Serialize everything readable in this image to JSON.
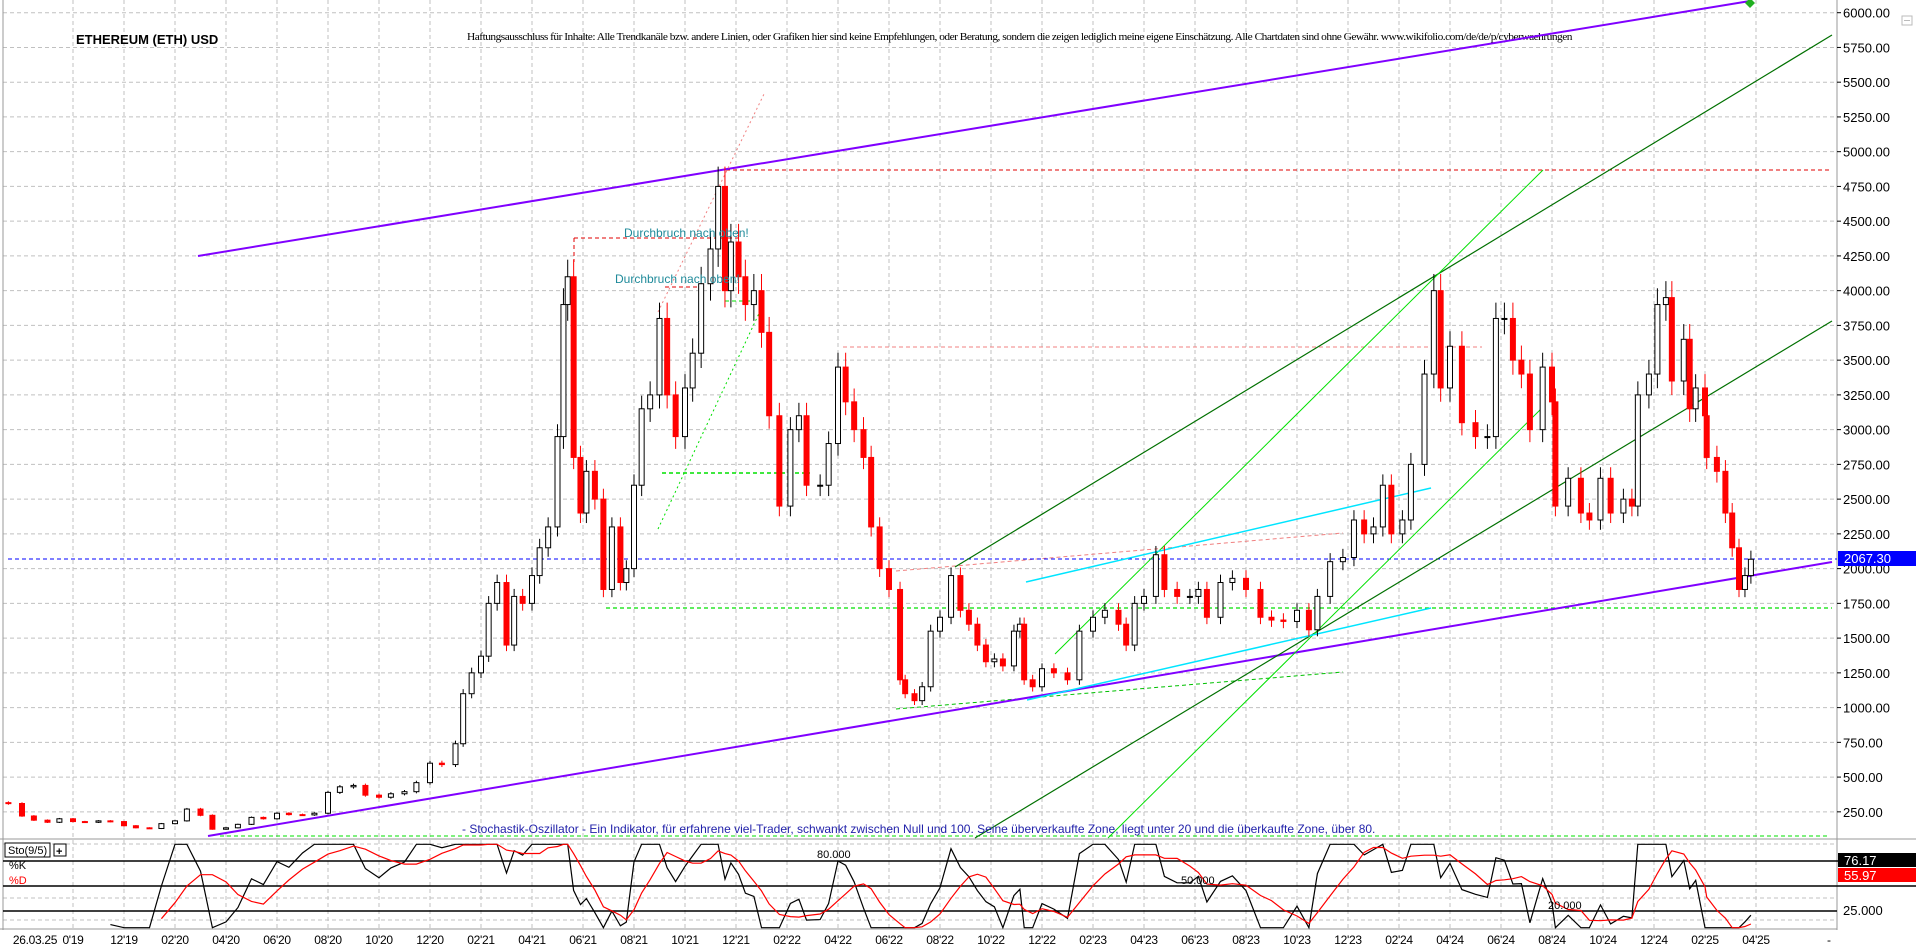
{
  "header": {
    "title": "ETHEREUM (ETH) USD",
    "disclaimer": "Haftungsausschluss für Inhalte: Alle Trendkanäle bzw. andere Linien, oder Grafiken hier sind keine Empfehlungen, oder Beratung, sondern die zeigen lediglich meine eigene Einschätzung. Alle Chartdaten sind ohne Gewähr.  www.wikifolio.com/de/de/p/cyberwaehrungen"
  },
  "annotations": {
    "breakout_1": "Durchbruch nach oben!",
    "breakout_2": "Durchbruch nach oben!",
    "stochastic_note": "- Stochastik-Oszillator - Ein Indikator, für erfahrene viel-Trader, schwankt zwischen Null und 100. Seine überverkaufte Zone, liegt unter 20 und die überkaufte Zone, über 80."
  },
  "colors": {
    "up_candle": "#000000",
    "down_candle": "#ff0000",
    "channel": "#8000ff",
    "trend_dark": "#007000",
    "trend_light": "#00e000",
    "cyan": "#00e5ff",
    "last_price": "#0000ff",
    "stoch_k": "#000000",
    "stoch_d": "#ff0000"
  },
  "chart_data": {
    "type": "candlestick",
    "title": "ETHEREUM (ETH) USD",
    "ylim": [
      0,
      6000
    ],
    "y_ticks": [
      "6000.00",
      "5750.00",
      "5500.00",
      "5250.00",
      "5000.00",
      "4750.00",
      "4500.00",
      "4250.00",
      "4000.00",
      "3750.00",
      "3500.00",
      "3250.00",
      "3000.00",
      "2750.00",
      "2500.00",
      "2250.00",
      "2000.00",
      "1750.00",
      "1500.00",
      "1250.00",
      "1000.00",
      "750.00",
      "500.00",
      "250.00"
    ],
    "x_ticks": [
      {
        "label": "26.03.25",
        "date": null
      },
      {
        "label": "0'19",
        "date": "2019-10-01"
      },
      {
        "label": "12'19",
        "date": "2019-12-01"
      },
      {
        "label": "02'20",
        "date": "2020-02-01"
      },
      {
        "label": "04'20",
        "date": "2020-04-01"
      },
      {
        "label": "06'20",
        "date": "2020-06-01"
      },
      {
        "label": "08'20",
        "date": "2020-08-01"
      },
      {
        "label": "10'20",
        "date": "2020-10-01"
      },
      {
        "label": "12'20",
        "date": "2020-12-01"
      },
      {
        "label": "02'21",
        "date": "2021-02-01"
      },
      {
        "label": "04'21",
        "date": "2021-04-01"
      },
      {
        "label": "06'21",
        "date": "2021-06-01"
      },
      {
        "label": "08'21",
        "date": "2021-08-01"
      },
      {
        "label": "10'21",
        "date": "2021-10-01"
      },
      {
        "label": "12'21",
        "date": "2021-12-01"
      },
      {
        "label": "02'22",
        "date": "2022-02-01"
      },
      {
        "label": "04'22",
        "date": "2022-04-01"
      },
      {
        "label": "06'22",
        "date": "2022-06-01"
      },
      {
        "label": "08'22",
        "date": "2022-08-01"
      },
      {
        "label": "10'22",
        "date": "2022-10-01"
      },
      {
        "label": "12'22",
        "date": "2022-12-01"
      },
      {
        "label": "02'23",
        "date": "2023-02-01"
      },
      {
        "label": "04'23",
        "date": "2023-04-01"
      },
      {
        "label": "06'23",
        "date": "2023-06-01"
      },
      {
        "label": "08'23",
        "date": "2023-08-01"
      },
      {
        "label": "10'23",
        "date": "2023-10-01"
      },
      {
        "label": "12'23",
        "date": "2023-12-01"
      },
      {
        "label": "02'24",
        "date": "2024-02-01"
      },
      {
        "label": "04'24",
        "date": "2024-04-01"
      },
      {
        "label": "06'24",
        "date": "2024-06-01"
      },
      {
        "label": "08'24",
        "date": "2024-08-01"
      },
      {
        "label": "10'24",
        "date": "2024-10-01"
      },
      {
        "label": "12'24",
        "date": "2024-12-01"
      },
      {
        "label": "02'25",
        "date": "2025-02-01"
      },
      {
        "label": "04'25",
        "date": "2025-04-01"
      }
    ],
    "x_axis_end_marker": "-",
    "last_price": "2067.30",
    "grid": true,
    "series": [
      [
        "2019-07-15",
        310
      ],
      [
        "2019-08-01",
        220
      ],
      [
        "2019-08-15",
        190
      ],
      [
        "2019-09-01",
        175
      ],
      [
        "2019-09-15",
        200
      ],
      [
        "2019-10-01",
        180
      ],
      [
        "2019-10-15",
        175
      ],
      [
        "2019-11-01",
        185
      ],
      [
        "2019-11-15",
        180
      ],
      [
        "2019-12-01",
        150
      ],
      [
        "2019-12-15",
        135
      ],
      [
        "2020-01-01",
        130
      ],
      [
        "2020-01-15",
        165
      ],
      [
        "2020-02-01",
        185
      ],
      [
        "2020-02-15",
        270
      ],
      [
        "2020-03-01",
        225
      ],
      [
        "2020-03-15",
        125
      ],
      [
        "2020-04-01",
        135
      ],
      [
        "2020-04-15",
        160
      ],
      [
        "2020-05-01",
        210
      ],
      [
        "2020-05-15",
        200
      ],
      [
        "2020-06-01",
        240
      ],
      [
        "2020-06-15",
        230
      ],
      [
        "2020-07-01",
        228
      ],
      [
        "2020-07-15",
        240
      ],
      [
        "2020-08-01",
        390
      ],
      [
        "2020-08-15",
        430
      ],
      [
        "2020-09-01",
        440
      ],
      [
        "2020-09-15",
        370
      ],
      [
        "2020-10-01",
        355
      ],
      [
        "2020-10-15",
        380
      ],
      [
        "2020-11-01",
        395
      ],
      [
        "2020-11-15",
        460
      ],
      [
        "2020-12-01",
        600
      ],
      [
        "2020-12-15",
        590
      ],
      [
        "2021-01-01",
        740
      ],
      [
        "2021-01-10",
        1100
      ],
      [
        "2021-01-20",
        1250
      ],
      [
        "2021-02-01",
        1370
      ],
      [
        "2021-02-10",
        1750
      ],
      [
        "2021-02-20",
        1900
      ],
      [
        "2021-03-01",
        1450
      ],
      [
        "2021-03-10",
        1800
      ],
      [
        "2021-03-20",
        1750
      ],
      [
        "2021-04-01",
        1950
      ],
      [
        "2021-04-10",
        2150
      ],
      [
        "2021-04-20",
        2300
      ],
      [
        "2021-05-01",
        2950
      ],
      [
        "2021-05-08",
        3900
      ],
      [
        "2021-05-13",
        4100
      ],
      [
        "2021-05-20",
        2800
      ],
      [
        "2021-05-28",
        2400
      ],
      [
        "2021-06-05",
        2700
      ],
      [
        "2021-06-15",
        2500
      ],
      [
        "2021-06-25",
        1850
      ],
      [
        "2021-07-05",
        2300
      ],
      [
        "2021-07-15",
        1900
      ],
      [
        "2021-07-22",
        2000
      ],
      [
        "2021-08-01",
        2600
      ],
      [
        "2021-08-10",
        3150
      ],
      [
        "2021-08-20",
        3250
      ],
      [
        "2021-09-01",
        3800
      ],
      [
        "2021-09-10",
        3250
      ],
      [
        "2021-09-20",
        2950
      ],
      [
        "2021-10-01",
        3300
      ],
      [
        "2021-10-10",
        3550
      ],
      [
        "2021-10-20",
        4050
      ],
      [
        "2021-11-01",
        4300
      ],
      [
        "2021-11-10",
        4750
      ],
      [
        "2021-11-18",
        4000
      ],
      [
        "2021-11-25",
        4350
      ],
      [
        "2021-12-04",
        4100
      ],
      [
        "2021-12-12",
        3900
      ],
      [
        "2021-12-22",
        4000
      ],
      [
        "2022-01-01",
        3700
      ],
      [
        "2022-01-10",
        3100
      ],
      [
        "2022-01-22",
        2450
      ],
      [
        "2022-02-05",
        3000
      ],
      [
        "2022-02-15",
        3100
      ],
      [
        "2022-02-24",
        2600
      ],
      [
        "2022-03-10",
        2600
      ],
      [
        "2022-03-20",
        2900
      ],
      [
        "2022-04-01",
        3450
      ],
      [
        "2022-04-10",
        3200
      ],
      [
        "2022-04-20",
        3000
      ],
      [
        "2022-05-01",
        2800
      ],
      [
        "2022-05-10",
        2300
      ],
      [
        "2022-05-20",
        2000
      ],
      [
        "2022-06-01",
        1850
      ],
      [
        "2022-06-14",
        1200
      ],
      [
        "2022-06-20",
        1100
      ],
      [
        "2022-07-01",
        1050
      ],
      [
        "2022-07-10",
        1150
      ],
      [
        "2022-07-20",
        1550
      ],
      [
        "2022-08-01",
        1650
      ],
      [
        "2022-08-14",
        1950
      ],
      [
        "2022-08-25",
        1700
      ],
      [
        "2022-09-05",
        1600
      ],
      [
        "2022-09-15",
        1450
      ],
      [
        "2022-09-25",
        1330
      ],
      [
        "2022-10-05",
        1350
      ],
      [
        "2022-10-15",
        1300
      ],
      [
        "2022-10-28",
        1550
      ],
      [
        "2022-11-05",
        1600
      ],
      [
        "2022-11-10",
        1200
      ],
      [
        "2022-11-20",
        1150
      ],
      [
        "2022-12-01",
        1280
      ],
      [
        "2022-12-15",
        1250
      ],
      [
        "2023-01-01",
        1200
      ],
      [
        "2023-01-15",
        1550
      ],
      [
        "2023-02-01",
        1650
      ],
      [
        "2023-02-15",
        1700
      ],
      [
        "2023-03-01",
        1600
      ],
      [
        "2023-03-10",
        1450
      ],
      [
        "2023-03-20",
        1750
      ],
      [
        "2023-04-01",
        1800
      ],
      [
        "2023-04-15",
        2100
      ],
      [
        "2023-04-25",
        1850
      ],
      [
        "2023-05-10",
        1800
      ],
      [
        "2023-05-25",
        1800
      ],
      [
        "2023-06-05",
        1850
      ],
      [
        "2023-06-15",
        1650
      ],
      [
        "2023-07-01",
        1900
      ],
      [
        "2023-07-15",
        1930
      ],
      [
        "2023-08-01",
        1850
      ],
      [
        "2023-08-18",
        1650
      ],
      [
        "2023-09-01",
        1630
      ],
      [
        "2023-09-15",
        1620
      ],
      [
        "2023-10-01",
        1700
      ],
      [
        "2023-10-15",
        1560
      ],
      [
        "2023-10-25",
        1800
      ],
      [
        "2023-11-10",
        2050
      ],
      [
        "2023-11-25",
        2080
      ],
      [
        "2023-12-08",
        2350
      ],
      [
        "2023-12-20",
        2250
      ],
      [
        "2024-01-01",
        2300
      ],
      [
        "2024-01-12",
        2600
      ],
      [
        "2024-01-22",
        2250
      ],
      [
        "2024-02-05",
        2350
      ],
      [
        "2024-02-15",
        2750
      ],
      [
        "2024-03-01",
        3400
      ],
      [
        "2024-03-12",
        4000
      ],
      [
        "2024-03-20",
        3300
      ],
      [
        "2024-04-01",
        3600
      ],
      [
        "2024-04-15",
        3050
      ],
      [
        "2024-05-01",
        2950
      ],
      [
        "2024-05-15",
        2950
      ],
      [
        "2024-05-25",
        3800
      ],
      [
        "2024-06-05",
        3800
      ],
      [
        "2024-06-15",
        3500
      ],
      [
        "2024-06-25",
        3400
      ],
      [
        "2024-07-05",
        3000
      ],
      [
        "2024-07-20",
        3450
      ],
      [
        "2024-08-01",
        3200
      ],
      [
        "2024-08-05",
        2450
      ],
      [
        "2024-08-20",
        2650
      ],
      [
        "2024-09-05",
        2400
      ],
      [
        "2024-09-15",
        2350
      ],
      [
        "2024-09-28",
        2650
      ],
      [
        "2024-10-10",
        2400
      ],
      [
        "2024-10-25",
        2500
      ],
      [
        "2024-11-05",
        2450
      ],
      [
        "2024-11-12",
        3250
      ],
      [
        "2024-11-25",
        3400
      ],
      [
        "2024-12-05",
        3900
      ],
      [
        "2024-12-15",
        3950
      ],
      [
        "2024-12-22",
        3350
      ],
      [
        "2025-01-06",
        3650
      ],
      [
        "2025-01-13",
        3150
      ],
      [
        "2025-01-20",
        3300
      ],
      [
        "2025-02-01",
        3100
      ],
      [
        "2025-02-03",
        2800
      ],
      [
        "2025-02-15",
        2700
      ],
      [
        "2025-02-25",
        2400
      ],
      [
        "2025-03-03",
        2150
      ],
      [
        "2025-03-11",
        1850
      ],
      [
        "2025-03-18",
        1950
      ],
      [
        "2025-03-25",
        2067.3
      ]
    ],
    "horizontal_levels": {
      "previous_high": 4870,
      "resistance": 3590,
      "support": 1715,
      "last": 2067.3
    }
  },
  "stochastic": {
    "label": "Sto(9/5)",
    "expand_button": "+",
    "k_label": "%K",
    "d_label": "%D",
    "level_80": "80.000",
    "level_50": "50.000",
    "level_20": "20.000",
    "axis_tick": "25.000",
    "k_value": "76.17",
    "d_value": "55.97",
    "levels": [
      80,
      50,
      20
    ]
  }
}
